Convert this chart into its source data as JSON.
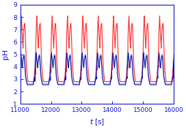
{
  "t_start": 11000,
  "t_end": 16000,
  "ph_min": 1,
  "ph_max": 9,
  "xlabel": "t [s]",
  "ylabel": "pH",
  "xticks": [
    11000,
    12000,
    13000,
    14000,
    15000,
    16000
  ],
  "yticks": [
    1,
    2,
    3,
    4,
    5,
    6,
    7,
    8,
    9
  ],
  "color_red": "#FF2020",
  "color_blue_light": "#88AADD",
  "color_blue_dark": "#0000AA",
  "color_axes": "#1010CC",
  "period": 500,
  "linewidth_red": 0.9,
  "linewidth_blue_light": 1.3,
  "linewidth_blue_dark": 0.7,
  "bg_color": "#FFFFFF"
}
